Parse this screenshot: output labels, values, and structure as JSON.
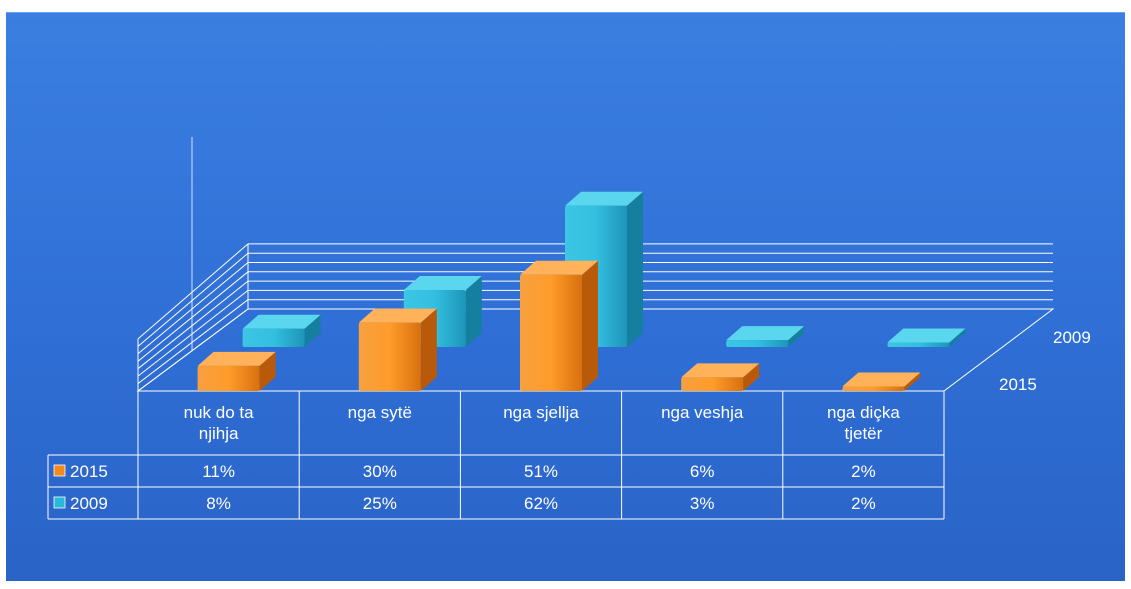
{
  "chart_data": {
    "type": "bar",
    "view": "3d",
    "categories": [
      "nuk do ta njihja",
      "nga sytë",
      "nga sjellja",
      "nga veshja",
      "nga diçka tjetër"
    ],
    "series": [
      {
        "name": "2015",
        "values": [
          11,
          30,
          51,
          6,
          2
        ],
        "labels": [
          "11%",
          "30%",
          "51%",
          "6%",
          "2%"
        ],
        "color": "#f28a1e"
      },
      {
        "name": "2009",
        "values": [
          8,
          25,
          62,
          3,
          2
        ],
        "labels": [
          "8%",
          "25%",
          "62%",
          "3%",
          "2%"
        ],
        "color": "#2ab8d8"
      }
    ],
    "ylim": [
      0,
      70
    ],
    "grid": true,
    "legend": "data-table",
    "title": "",
    "xlabel": "",
    "ylabel": ""
  },
  "colors": {
    "background": "#2f6fd6",
    "grid": "#ffffff",
    "text": "#ffffff"
  }
}
